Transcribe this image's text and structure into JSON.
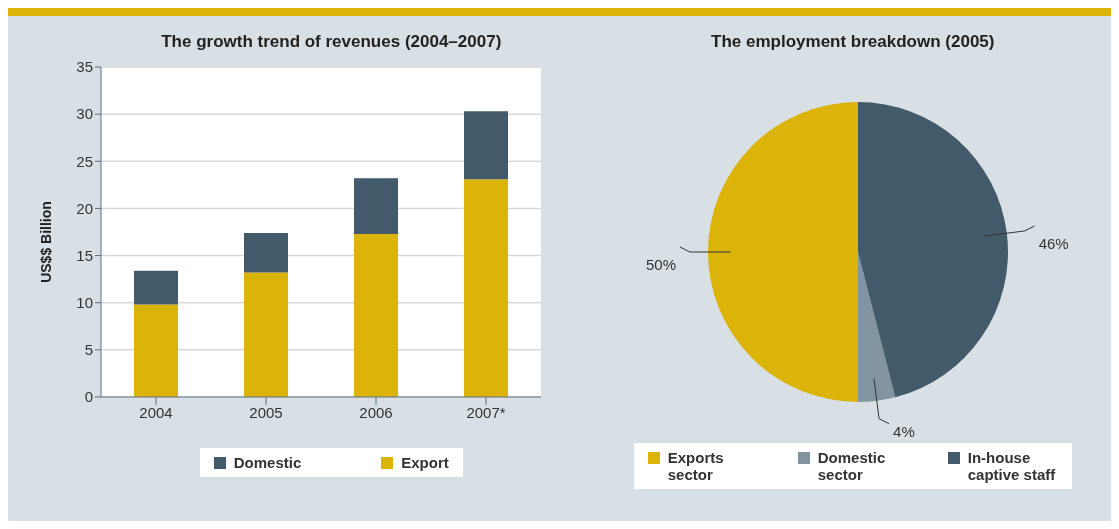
{
  "chart_data": [
    {
      "type": "bar",
      "title": "The growth trend of revenues (2004–2007)",
      "ylabel": "US$$ Billion",
      "categories": [
        "2004",
        "2005",
        "2006",
        "2007*"
      ],
      "stacked": true,
      "series": [
        {
          "name": "Export",
          "color": "#dcb308",
          "values": [
            9.8,
            13.2,
            17.3,
            23.1
          ]
        },
        {
          "name": "Domestic",
          "color": "#435a6b",
          "values": [
            3.6,
            4.2,
            5.9,
            7.2
          ]
        }
      ],
      "ylim": [
        0,
        35
      ],
      "yticks": [
        0,
        5,
        10,
        15,
        20,
        25,
        30,
        35
      ],
      "grid": "y",
      "legend": "bottom"
    },
    {
      "type": "pie",
      "title": "The employment breakdown (2005)",
      "categories": [
        "Exports sector",
        "Domestic sector",
        "In-house captive staff"
      ],
      "values": [
        50,
        4,
        46
      ],
      "colors": [
        "#dcb308",
        "#8294a0",
        "#435a6b"
      ],
      "value_labels": [
        "50%",
        "4%",
        "46%"
      ],
      "legend": "bottom"
    }
  ]
}
